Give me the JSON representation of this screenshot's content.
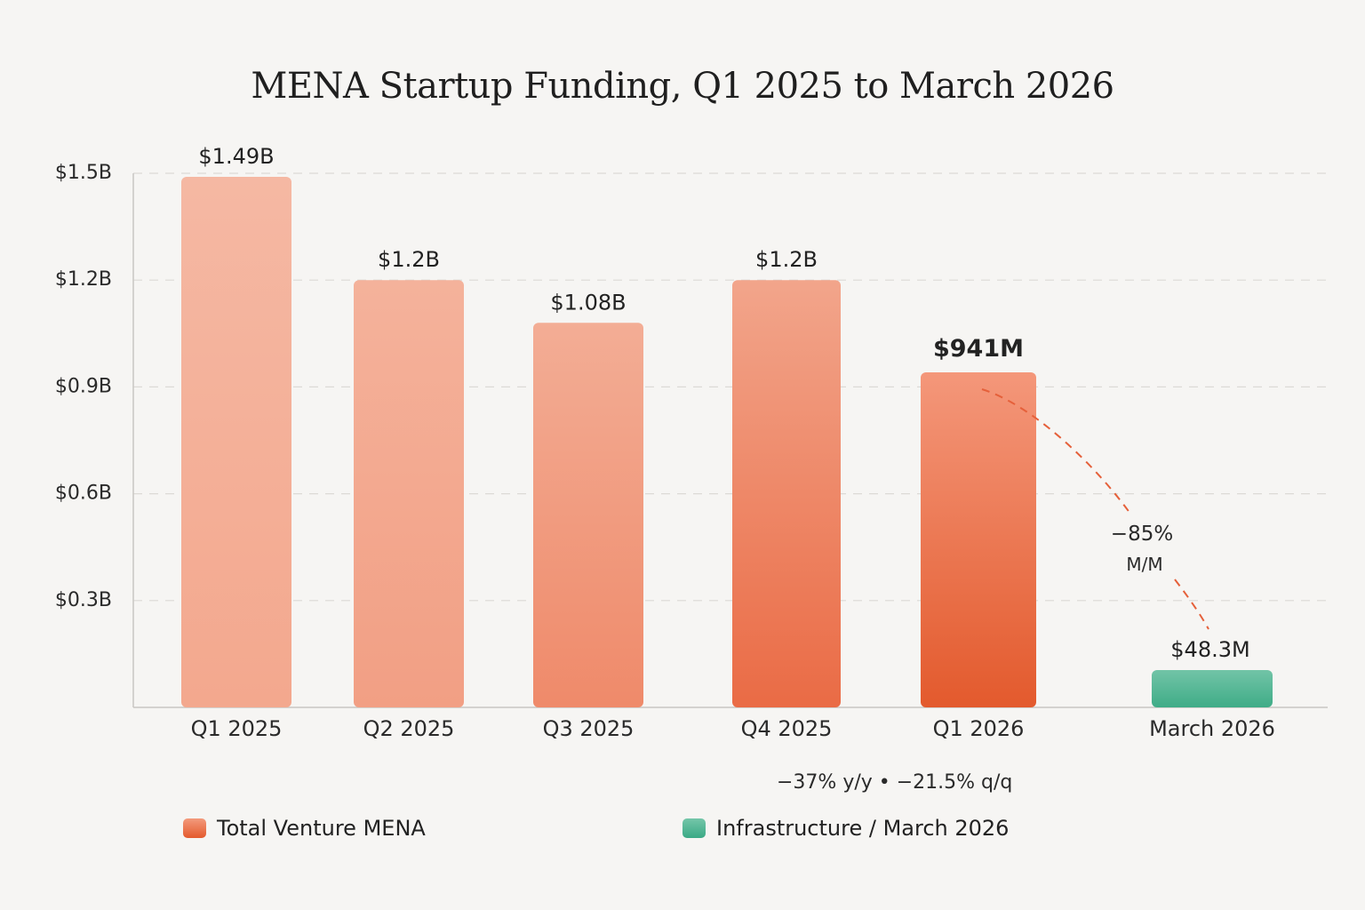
{
  "chart_data": {
    "type": "bar",
    "title": "MENA Startup Funding, Q1 2025 to March 2026",
    "xlabel": "",
    "ylabel": "",
    "ylim": [
      0,
      1.5
    ],
    "y_unit": "USD billions",
    "grid": true,
    "yticks": [
      {
        "value": 1.5,
        "label": "$1.5B"
      },
      {
        "value": 1.2,
        "label": "$1.2B"
      },
      {
        "value": 0.9,
        "label": "$0.9B"
      },
      {
        "value": 0.6,
        "label": "$0.6B"
      },
      {
        "value": 0.3,
        "label": "$0.3B"
      }
    ],
    "categories": [
      "Q1 2025",
      "Q2 2025",
      "Q3 2025",
      "Q4 2025",
      "Q1 2026",
      "March 2026"
    ],
    "series": [
      {
        "name": "Total Venture MENA",
        "color": "#e65a2c",
        "values": [
          1.49,
          1.2,
          1.08,
          1.2,
          0.941,
          null
        ],
        "labels": [
          "$1.49B",
          "$1.2B",
          "$1.08B",
          "$1.2B",
          "$941M",
          null
        ]
      },
      {
        "name": "Infrastructure / March 2026",
        "color": "#3fae8a",
        "values": [
          null,
          null,
          null,
          null,
          null,
          0.0483
        ],
        "labels": [
          null,
          null,
          null,
          null,
          null,
          "$48.3M"
        ]
      }
    ],
    "annotations": {
      "drop_pct": "−85%",
      "drop_period": "M/M",
      "q1_2026_change": "−37% y/y • −21.5% q/q"
    },
    "legend": {
      "placement": "bottom-left",
      "items": [
        {
          "label": "Total Venture MENA",
          "color": "#e8643a"
        },
        {
          "label": "Infrastructure / March 2026",
          "color": "#45b08f"
        }
      ]
    }
  }
}
